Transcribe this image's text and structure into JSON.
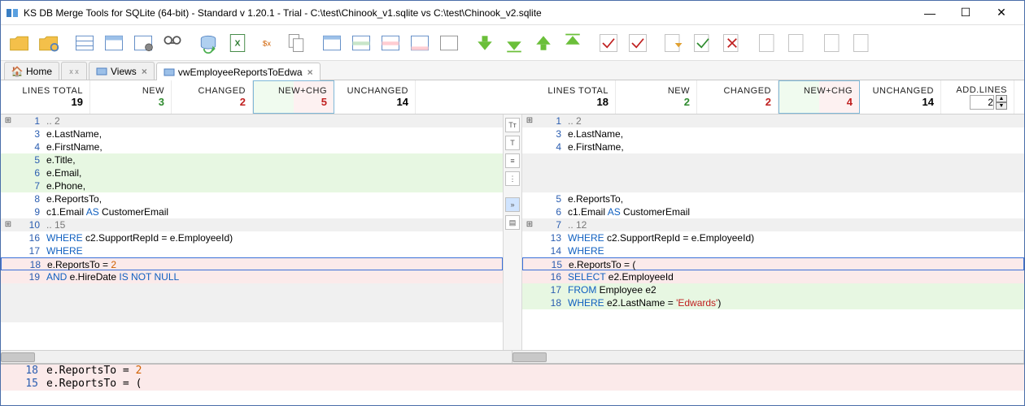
{
  "window": {
    "title": "KS DB Merge Tools for SQLite (64-bit) - Standard v 1.20.1 - Trial - C:\\test\\Chinook_v1.sqlite vs C:\\test\\Chinook_v2.sqlite"
  },
  "tabs": {
    "home": "Home",
    "views": "Views",
    "active": "vwEmployeeReportsToEdwa"
  },
  "stats": {
    "left": {
      "lines_total_hdr": "LINES TOTAL",
      "lines_total": "19",
      "new_hdr": "NEW",
      "new": "3",
      "changed_hdr": "CHANGED",
      "changed": "2",
      "newchg_hdr": "NEW+CHG",
      "newchg": "5",
      "unchanged_hdr": "UNCHANGED",
      "unchanged": "14"
    },
    "right": {
      "lines_total_hdr": "LINES TOTAL",
      "lines_total": "18",
      "new_hdr": "NEW",
      "new": "2",
      "changed_hdr": "CHANGED",
      "changed": "2",
      "newchg_hdr": "NEW+CHG",
      "newchg": "4",
      "unchanged_hdr": "UNCHANGED",
      "unchanged": "14"
    },
    "addlines_hdr": "ADD.LINES",
    "addlines_val": "2"
  },
  "colors": {
    "add_bg": "#e7f7e2",
    "chg_bg": "#fbeaea",
    "keyword": "#1060c0",
    "number": "#d06000",
    "string": "#c02020"
  },
  "left_lines": [
    {
      "n": "1",
      "cls": "bg-fold",
      "fold": "⊞",
      "t": ".. 2"
    },
    {
      "n": "3",
      "cls": "bg-plain",
      "t": "    e.LastName,"
    },
    {
      "n": "4",
      "cls": "bg-plain",
      "t": "    e.FirstName,"
    },
    {
      "n": "5",
      "cls": "bg-add",
      "t": "    e.Title,"
    },
    {
      "n": "6",
      "cls": "bg-add",
      "t": "    e.Email,"
    },
    {
      "n": "7",
      "cls": "bg-add",
      "t": "    e.Phone,"
    },
    {
      "n": "8",
      "cls": "bg-plain",
      "t": "    e.ReportsTo,"
    },
    {
      "n": "9",
      "cls": "bg-plain",
      "html": "    c1.Email <span class='kw'>AS</span> CustomerEmail"
    },
    {
      "n": "10",
      "cls": "bg-fold",
      "fold": "⊞",
      "t": ".. 15"
    },
    {
      "n": "16",
      "cls": "bg-plain",
      "html": "      <span class='kw'>WHERE</span> c2.SupportRepId = e.EmployeeId)"
    },
    {
      "n": "17",
      "cls": "bg-plain",
      "html": "<span class='kw'>WHERE</span>"
    },
    {
      "n": "18",
      "cls": "bg-chg bg-sel",
      "html": "    e.ReportsTo = <span class='num'>2</span>"
    },
    {
      "n": "19",
      "cls": "bg-chg",
      "html": "<span class='kw'>AND</span> e.HireDate <span class='kw'>IS NOT NULL</span>"
    },
    {
      "n": "",
      "cls": "bg-blank",
      "t": " "
    },
    {
      "n": "",
      "cls": "bg-blank",
      "t": " "
    },
    {
      "n": "",
      "cls": "bg-blank",
      "t": " "
    }
  ],
  "right_lines": [
    {
      "n": "1",
      "cls": "bg-fold",
      "fold": "⊞",
      "t": ".. 2"
    },
    {
      "n": "3",
      "cls": "bg-plain",
      "t": "    e.LastName,"
    },
    {
      "n": "4",
      "cls": "bg-plain",
      "t": "    e.FirstName,"
    },
    {
      "n": "",
      "cls": "bg-blank",
      "t": " "
    },
    {
      "n": "",
      "cls": "bg-blank",
      "t": " "
    },
    {
      "n": "",
      "cls": "bg-blank",
      "t": " "
    },
    {
      "n": "5",
      "cls": "bg-plain",
      "t": "    e.ReportsTo,"
    },
    {
      "n": "6",
      "cls": "bg-plain",
      "html": "    c1.Email <span class='kw'>AS</span> CustomerEmail"
    },
    {
      "n": "7",
      "cls": "bg-fold",
      "fold": "⊞",
      "t": ".. 12"
    },
    {
      "n": "13",
      "cls": "bg-plain",
      "html": "      <span class='kw'>WHERE</span> c2.SupportRepId = e.EmployeeId)"
    },
    {
      "n": "14",
      "cls": "bg-plain",
      "html": "<span class='kw'>WHERE</span>"
    },
    {
      "n": "15",
      "cls": "bg-chg bg-sel",
      "t": "    e.ReportsTo = ("
    },
    {
      "n": "16",
      "cls": "bg-chg",
      "html": "      <span class='kw'>SELECT</span> e2.EmployeeId"
    },
    {
      "n": "17",
      "cls": "bg-add",
      "html": "      <span class='kw'>FROM</span> Employee e2"
    },
    {
      "n": "18",
      "cls": "bg-add",
      "html": "      <span class='kw'>WHERE</span> e2.LastName = <span class='str'>'Edwards'</span>)"
    },
    {
      "n": "",
      "cls": "bg-plain",
      "t": " "
    }
  ],
  "bottom": [
    {
      "n": "18",
      "cls": "bg-chg",
      "html": "    e.ReportsTo = <span class='num'>2</span>"
    },
    {
      "n": "15",
      "cls": "bg-chg",
      "t": "    e.ReportsTo = ("
    }
  ]
}
